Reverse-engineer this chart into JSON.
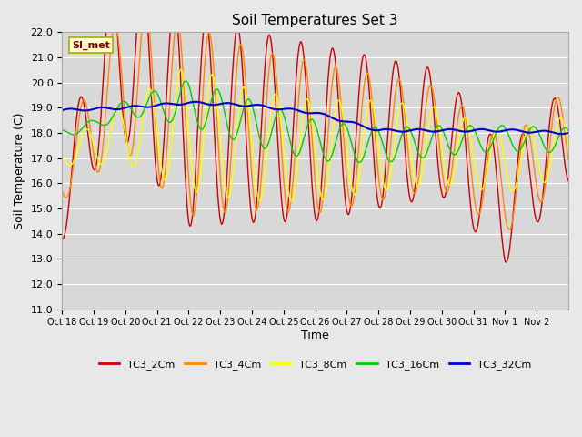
{
  "title": "Soil Temperatures Set 3",
  "xlabel": "Time",
  "ylabel": "Soil Temperature (C)",
  "ylim": [
    11.0,
    22.0
  ],
  "yticks": [
    11.0,
    12.0,
    13.0,
    14.0,
    15.0,
    16.0,
    17.0,
    18.0,
    19.0,
    20.0,
    21.0,
    22.0
  ],
  "xtick_labels": [
    "Oct 18",
    "Oct 19",
    "Oct 20",
    "Oct 21",
    "Oct 22",
    "Oct 23",
    "Oct 24",
    "Oct 25",
    "Oct 26",
    "Oct 27",
    "Oct 28",
    "Oct 29",
    "Oct 30",
    "Oct 31",
    "Nov 1",
    "Nov 2"
  ],
  "colors": {
    "TC3_2Cm": "#cc0000",
    "TC3_4Cm": "#ff8800",
    "TC3_8Cm": "#ffff00",
    "TC3_16Cm": "#00cc00",
    "TC3_32Cm": "#0000cc"
  },
  "legend_label": "SI_met",
  "bg_color": "#e8e8e8",
  "plot_bg": "#d8d8d8",
  "grid_color": "#ffffff"
}
